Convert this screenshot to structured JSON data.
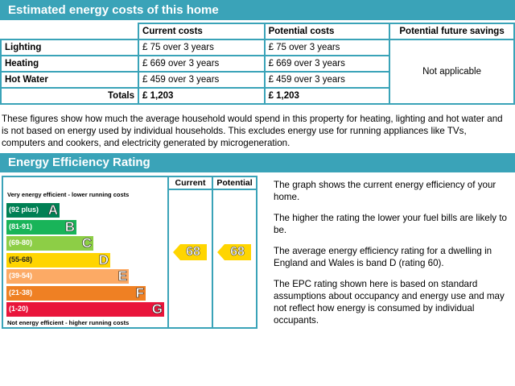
{
  "costs": {
    "title": "Estimated energy costs of this home",
    "columns": [
      "Current costs",
      "Potential costs",
      "Potential future savings"
    ],
    "rows": [
      {
        "label": "Lighting",
        "current": "£ 75 over 3 years",
        "potential": "£ 75 over 3 years"
      },
      {
        "label": "Heating",
        "current": "£ 669 over 3 years",
        "potential": "£ 669 over 3 years"
      },
      {
        "label": "Hot Water",
        "current": "£ 459 over 3 years",
        "potential": "£ 459 over 3 years"
      }
    ],
    "totals": {
      "label": "Totals",
      "current": "£ 1,203",
      "potential": "£ 1,203"
    },
    "savings": "Not applicable",
    "note": "These figures show how much the average household would spend in this property for heating, lighting and hot water and is not based on energy used by individual households. This excludes energy use for running appliances like TVs, computers and cookers, and electricity generated by microgeneration."
  },
  "rating": {
    "title": "Energy Efficiency Rating",
    "col_current": "Current",
    "col_potential": "Potential",
    "top_label": "Very energy efficient - lower running costs",
    "bottom_label": "Not energy efficient - higher running costs",
    "bands": [
      {
        "range": "(92 plus)",
        "letter": "A",
        "color": "#008054"
      },
      {
        "range": "(81-91)",
        "letter": "B",
        "color": "#19b459"
      },
      {
        "range": "(69-80)",
        "letter": "C",
        "color": "#8dce46"
      },
      {
        "range": "(55-68)",
        "letter": "D",
        "color": "#ffd500"
      },
      {
        "range": "(39-54)",
        "letter": "E",
        "color": "#fcaa65"
      },
      {
        "range": "(21-38)",
        "letter": "F",
        "color": "#ef8023"
      },
      {
        "range": "(1-20)",
        "letter": "G",
        "color": "#e9153b"
      }
    ],
    "current_value": "68",
    "potential_value": "68",
    "arrow_color": "#ffd500",
    "accent": "#3aa3b8",
    "notes": [
      "The graph shows the current energy efficiency of your home.",
      "The higher the rating the lower your fuel bills are likely to be.",
      "The average energy efficiency rating for a dwelling in England and Wales is band D (rating 60).",
      "The EPC rating shown here is based on standard assumptions about occupancy and energy use and may not reflect how energy is consumed by individual occupants."
    ]
  }
}
